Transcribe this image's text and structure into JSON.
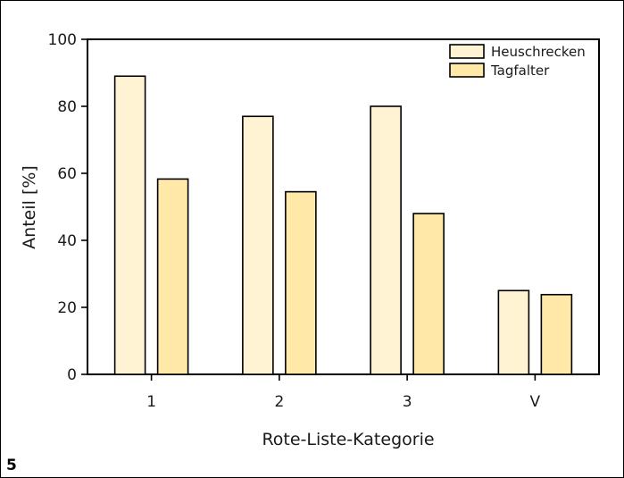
{
  "figure_number": "5",
  "colors": {
    "series_0": "#fff3d4",
    "series_1": "#ffe8a8",
    "stroke": "#000000"
  },
  "chart_data": {
    "type": "bar",
    "title": "",
    "xlabel": "Rote-Liste-Kategorie",
    "ylabel": "Anteil [%]",
    "categories": [
      "1",
      "2",
      "3",
      "V"
    ],
    "ylim": [
      0,
      100
    ],
    "yticks": [
      "0",
      "20",
      "40",
      "60",
      "80",
      "100"
    ],
    "grid": false,
    "legend_position": "top-right",
    "series": [
      {
        "name": "Heuschrecken",
        "values": [
          89,
          77,
          80,
          25
        ]
      },
      {
        "name": "Tagfalter",
        "values": [
          58.3,
          54.5,
          48,
          23.8
        ]
      }
    ]
  }
}
